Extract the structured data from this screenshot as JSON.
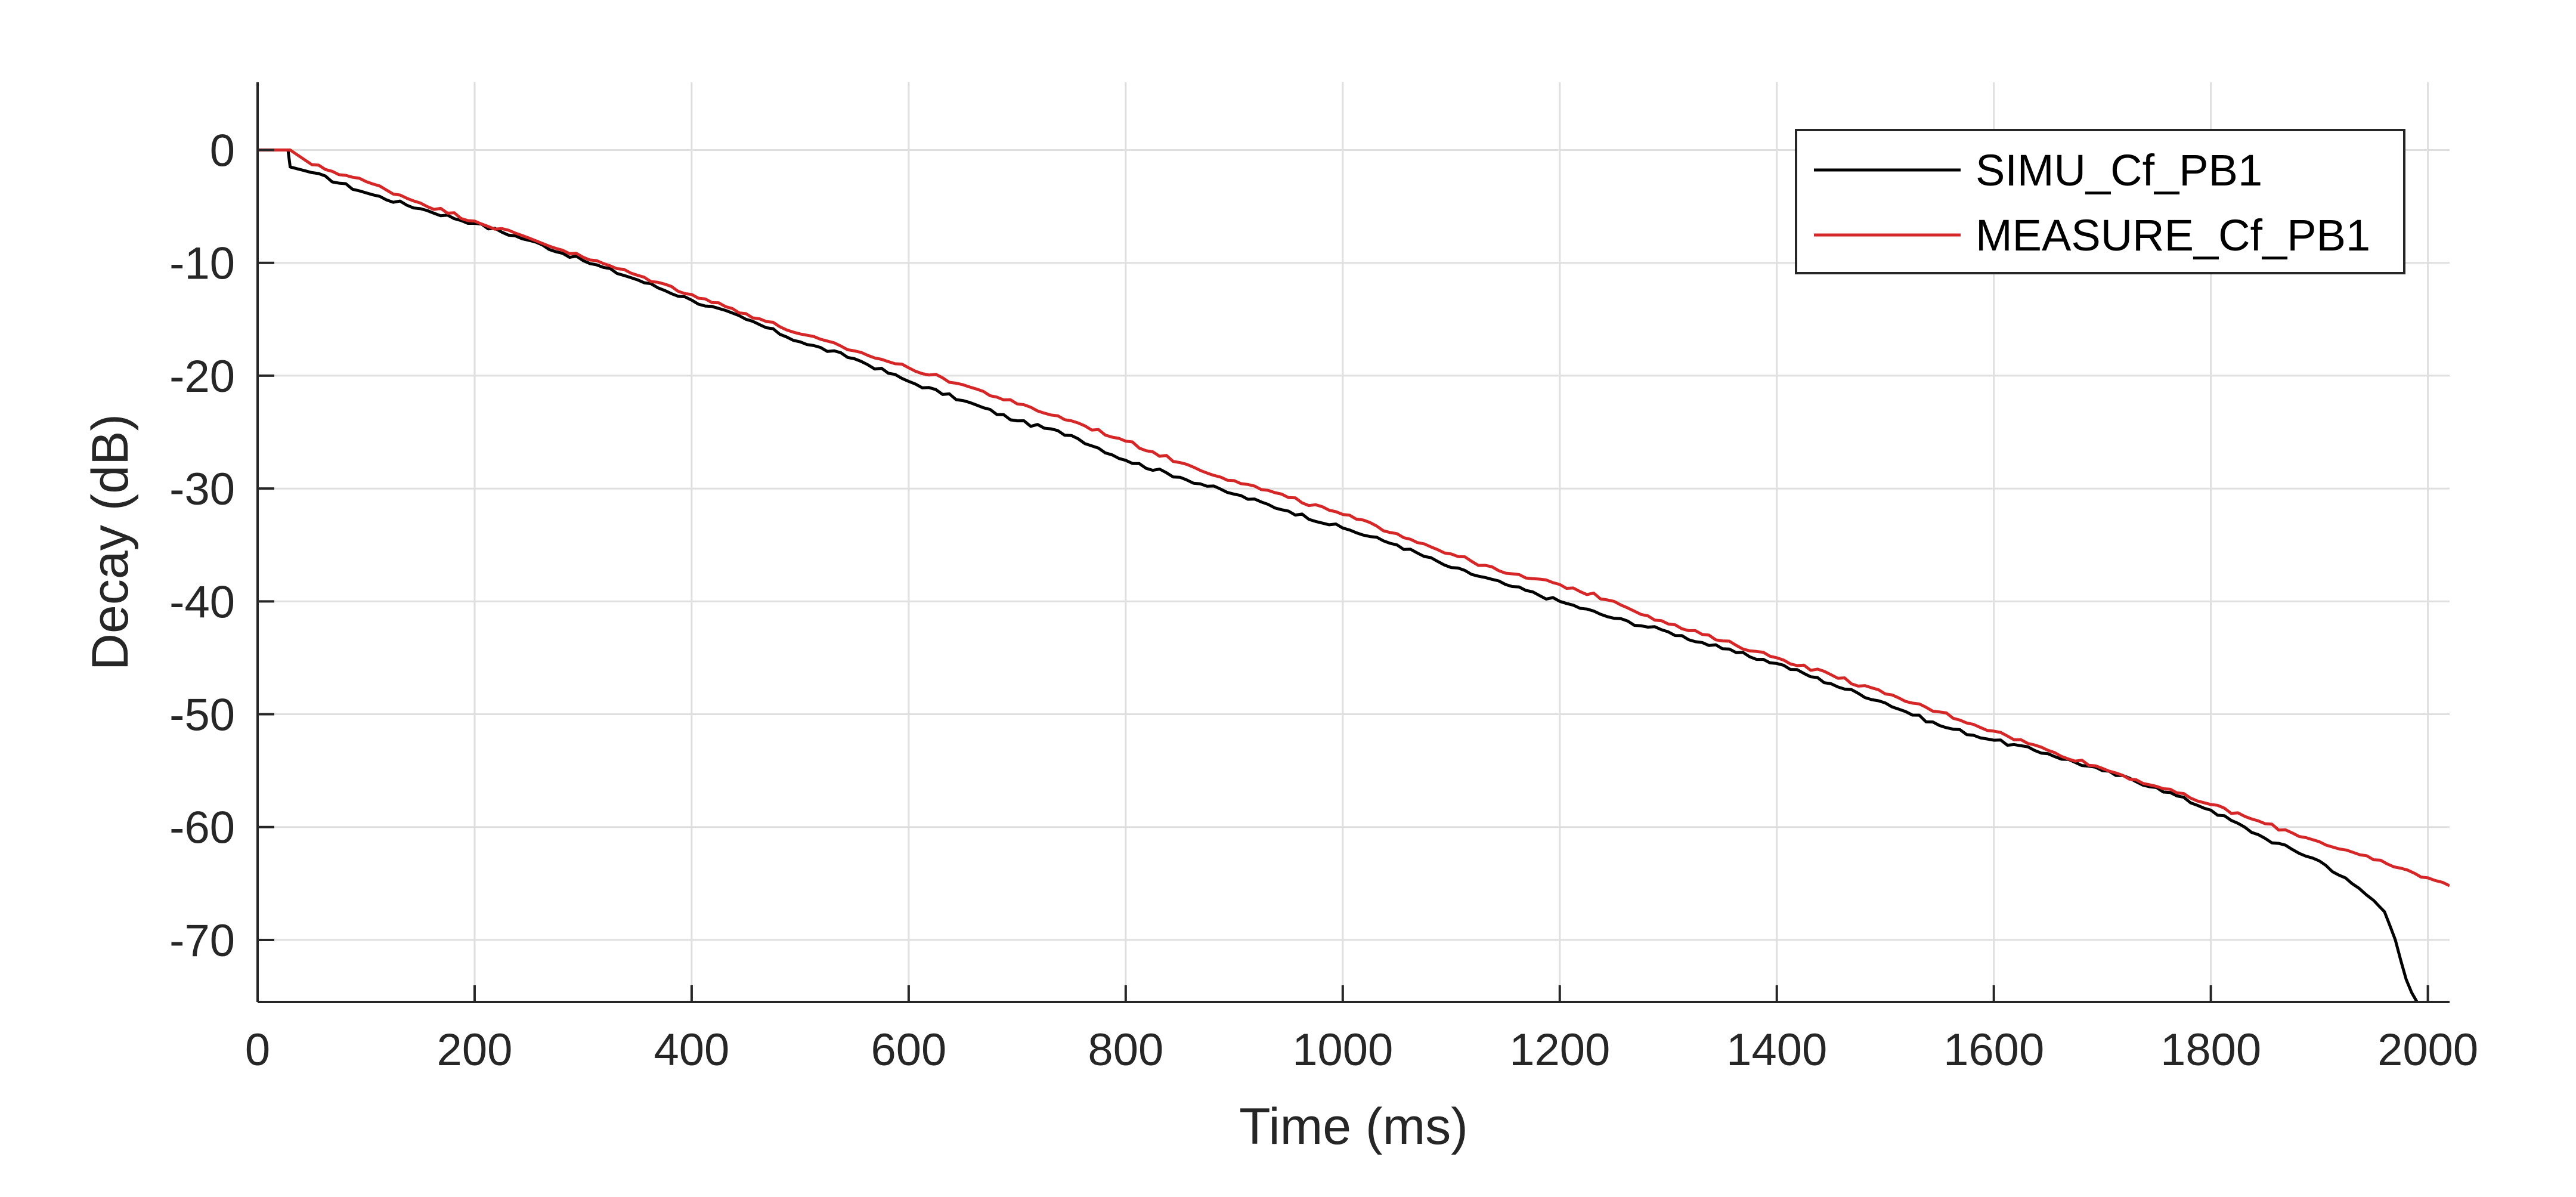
{
  "chart_data": {
    "type": "line",
    "title": "",
    "xlabel": "Time (ms)",
    "ylabel": "Decay (dB)",
    "xlim": [
      0,
      2020
    ],
    "ylim": [
      -75.5,
      6
    ],
    "xticks": [
      0,
      200,
      400,
      600,
      800,
      1000,
      1200,
      1400,
      1600,
      1800,
      2000
    ],
    "yticks": [
      0,
      -10,
      -20,
      -30,
      -40,
      -50,
      -60,
      -70
    ],
    "xtick_labels": [
      "0",
      "200",
      "400",
      "600",
      "800",
      "1000",
      "1200",
      "1400",
      "1600",
      "1800",
      "2000"
    ],
    "ytick_labels": [
      "0",
      "-10",
      "-20",
      "-30",
      "-40",
      "-50",
      "-60",
      "-70"
    ],
    "grid": true,
    "legend_position": "top-right",
    "series": [
      {
        "name": "SIMU_Cf_PB1",
        "color": "#000000",
        "x": [
          0,
          28,
          30,
          50,
          100,
          150,
          200,
          250,
          300,
          350,
          400,
          450,
          500,
          550,
          600,
          650,
          700,
          750,
          800,
          850,
          900,
          950,
          1000,
          1050,
          1100,
          1150,
          1200,
          1250,
          1300,
          1350,
          1400,
          1450,
          1500,
          1550,
          1600,
          1650,
          1700,
          1750,
          1800,
          1850,
          1900,
          1930,
          1950,
          1960,
          1970,
          1980,
          1990
        ],
        "y": [
          0,
          0,
          -1.5,
          -2.0,
          -3.8,
          -5.2,
          -6.5,
          -8.0,
          -9.8,
          -11.5,
          -13.3,
          -15.0,
          -17.0,
          -18.5,
          -20.5,
          -22.2,
          -24.0,
          -25.3,
          -27.5,
          -29.0,
          -30.5,
          -32.0,
          -33.5,
          -35.0,
          -37.0,
          -38.5,
          -40.0,
          -41.5,
          -42.7,
          -44.2,
          -45.5,
          -47.3,
          -49.0,
          -51.0,
          -52.3,
          -53.5,
          -55.0,
          -56.5,
          -58.5,
          -61.0,
          -63.0,
          -65.0,
          -66.5,
          -67.5,
          -70.0,
          -73.5,
          -75.5
        ]
      },
      {
        "name": "MEASURE_Cf_PB1",
        "color": "#d62728",
        "x": [
          0,
          30,
          50,
          100,
          150,
          200,
          250,
          300,
          350,
          400,
          450,
          500,
          550,
          600,
          650,
          700,
          750,
          800,
          850,
          900,
          950,
          1000,
          1050,
          1100,
          1150,
          1200,
          1250,
          1300,
          1350,
          1400,
          1450,
          1500,
          1550,
          1600,
          1650,
          1700,
          1750,
          1800,
          1850,
          1900,
          1950,
          2000,
          2020
        ],
        "y": [
          0,
          0,
          -1.3,
          -2.8,
          -4.7,
          -6.3,
          -7.8,
          -9.5,
          -11.1,
          -12.8,
          -14.5,
          -16.3,
          -17.8,
          -19.3,
          -20.8,
          -22.5,
          -24.0,
          -25.8,
          -27.7,
          -29.3,
          -30.8,
          -32.3,
          -34.0,
          -35.8,
          -37.5,
          -38.5,
          -40.0,
          -42.0,
          -43.5,
          -45.0,
          -46.5,
          -48.2,
          -49.8,
          -51.5,
          -53.2,
          -54.8,
          -56.4,
          -58.0,
          -59.7,
          -61.3,
          -62.9,
          -64.5,
          -65.2
        ]
      }
    ]
  }
}
